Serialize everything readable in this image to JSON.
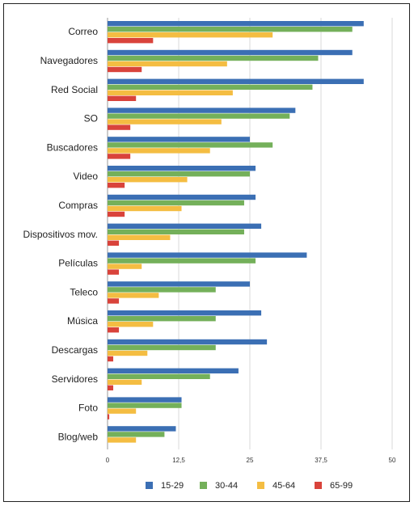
{
  "chart_data": {
    "type": "bar",
    "orientation": "horizontal",
    "categories": [
      "Correo",
      "Navegadores",
      "Red Social",
      "SO",
      "Buscadores",
      "Video",
      "Compras",
      "Dispositivos mov.",
      "Películas",
      "Teleco",
      "Música",
      "Descargas",
      "Servidores",
      "Foto",
      "Blog/web"
    ],
    "series": [
      {
        "name": "15-29",
        "color": "#3b6fb4",
        "values": [
          45,
          43,
          45,
          33,
          25,
          26,
          26,
          27,
          35,
          25,
          27,
          28,
          23,
          13,
          12
        ]
      },
      {
        "name": "30-44",
        "color": "#74b05a",
        "values": [
          43,
          37,
          36,
          32,
          29,
          25,
          24,
          24,
          26,
          19,
          19,
          19,
          18,
          13,
          10
        ]
      },
      {
        "name": "45-64",
        "color": "#f4bd42",
        "values": [
          29,
          21,
          22,
          20,
          18,
          14,
          13,
          11,
          6,
          9,
          8,
          7,
          6,
          5,
          5
        ]
      },
      {
        "name": "65-99",
        "color": "#d9433b",
        "values": [
          8,
          6,
          5,
          4,
          4,
          3,
          3,
          2,
          2,
          2,
          2,
          1,
          1,
          0.3,
          0
        ]
      }
    ],
    "xlim": [
      0,
      50
    ],
    "xticks": [
      0,
      12.5,
      25,
      37.5,
      50
    ],
    "xtick_labels": [
      "0",
      "12,5",
      "25",
      "37,5",
      "50"
    ],
    "grid": true,
    "legend_position": "bottom",
    "title": "",
    "xlabel": "",
    "ylabel": ""
  }
}
